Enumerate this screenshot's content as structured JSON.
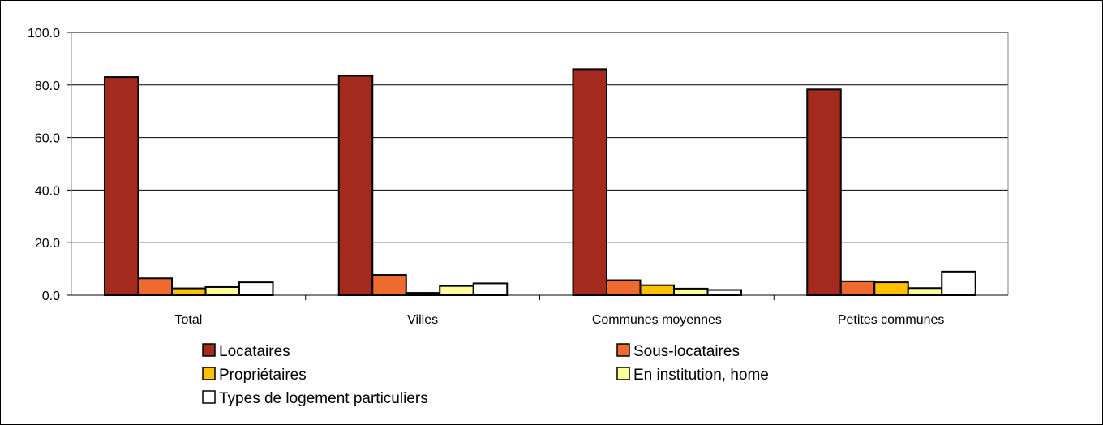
{
  "chart_data": {
    "type": "bar",
    "title": "",
    "xlabel": "",
    "ylabel": "",
    "ylim": [
      0,
      100
    ],
    "y_ticks": [
      "0.0",
      "20.0",
      "40.0",
      "60.0",
      "80.0",
      "100.0"
    ],
    "categories": [
      "Total",
      "Villes",
      "Communes moyennes",
      "Petites communes"
    ],
    "series": [
      {
        "name": "Locataires",
        "color": "#A52A1E",
        "values": [
          83.0,
          83.5,
          86.0,
          78.3
        ]
      },
      {
        "name": "Sous-locataires",
        "color": "#EE6A2E",
        "values": [
          6.4,
          7.7,
          5.7,
          5.3
        ]
      },
      {
        "name": "Propriétaires",
        "color": "#FFC000",
        "values": [
          2.6,
          0.9,
          3.8,
          4.9
        ]
      },
      {
        "name": "En institution, home",
        "color": "#FFFF99",
        "values": [
          3.1,
          3.5,
          2.5,
          2.7
        ]
      },
      {
        "name": "Types de logement particuliers",
        "color": "#FFFFFF",
        "values": [
          4.9,
          4.5,
          2.0,
          9.0
        ]
      }
    ],
    "grid": true,
    "legend_position": "bottom"
  }
}
